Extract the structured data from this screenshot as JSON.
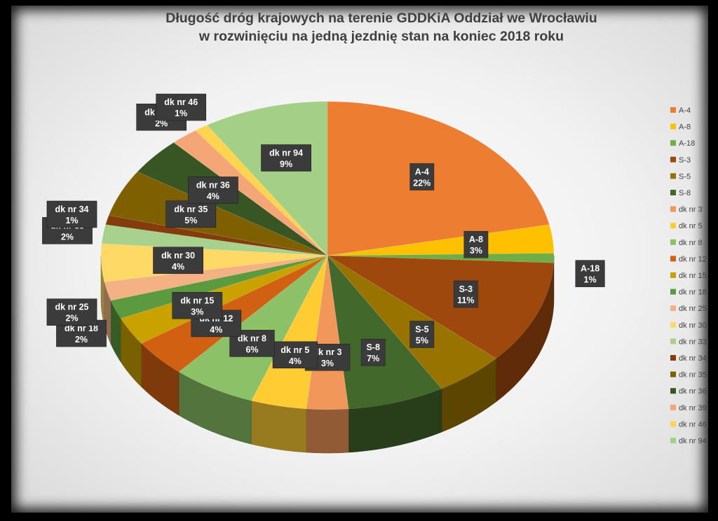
{
  "chart_data": {
    "type": "pie",
    "title": "Długość dróg krajowych na terenie GDDKiA Oddział we Wrocławiu",
    "subtitle": "w rozwinięciu na jedną jezdnię stan na koniec 2018 roku",
    "legend_position": "right",
    "slices": [
      {
        "name": "A-4",
        "value": 22,
        "label": "22%",
        "color": "#ED7D31"
      },
      {
        "name": "A-8",
        "value": 3,
        "label": "3%",
        "color": "#FFC000"
      },
      {
        "name": "A-18",
        "value": 1,
        "label": "1%",
        "color": "#70AD47"
      },
      {
        "name": "S-3",
        "value": 11,
        "label": "11%",
        "color": "#9E480E"
      },
      {
        "name": "S-5",
        "value": 5,
        "label": "5%",
        "color": "#997300"
      },
      {
        "name": "S-8",
        "value": 7,
        "label": "7%",
        "color": "#43682B"
      },
      {
        "name": "dk nr 3",
        "value": 3,
        "label": "3%",
        "color": "#F1975A"
      },
      {
        "name": "dk nr 5",
        "value": 4,
        "label": "4%",
        "color": "#FFCD33"
      },
      {
        "name": "dk nr 8",
        "value": 6,
        "label": "6%",
        "color": "#8CC168"
      },
      {
        "name": "dk nr 12",
        "value": 4,
        "label": "4%",
        "color": "#D26012"
      },
      {
        "name": "dk nr 15",
        "value": 3,
        "label": "3%",
        "color": "#C9A200"
      },
      {
        "name": "dk nr 18",
        "value": 2,
        "label": "2%",
        "color": "#5B9A3E"
      },
      {
        "name": "dk nr 25",
        "value": 2,
        "label": "2%",
        "color": "#F4B183"
      },
      {
        "name": "dk nr 30",
        "value": 4,
        "label": "4%",
        "color": "#FFD966"
      },
      {
        "name": "dk nr 33",
        "value": 2,
        "label": "2%",
        "color": "#A9D18E"
      },
      {
        "name": "dk nr 34",
        "value": 1,
        "label": "1%",
        "color": "#843C0C"
      },
      {
        "name": "dk nr 35",
        "value": 5,
        "label": "5%",
        "color": "#7F6000"
      },
      {
        "name": "dk nr 36",
        "value": 4,
        "label": "4%",
        "color": "#375623"
      },
      {
        "name": "dk nr 39",
        "value": 2,
        "label": "2%",
        "color": "#F4A677"
      },
      {
        "name": "dk nr 46",
        "value": 1,
        "label": "1%",
        "color": "#FFD54F"
      },
      {
        "name": "dk nr 94",
        "value": 9,
        "label": "9%",
        "color": "#A3CF86"
      }
    ]
  }
}
